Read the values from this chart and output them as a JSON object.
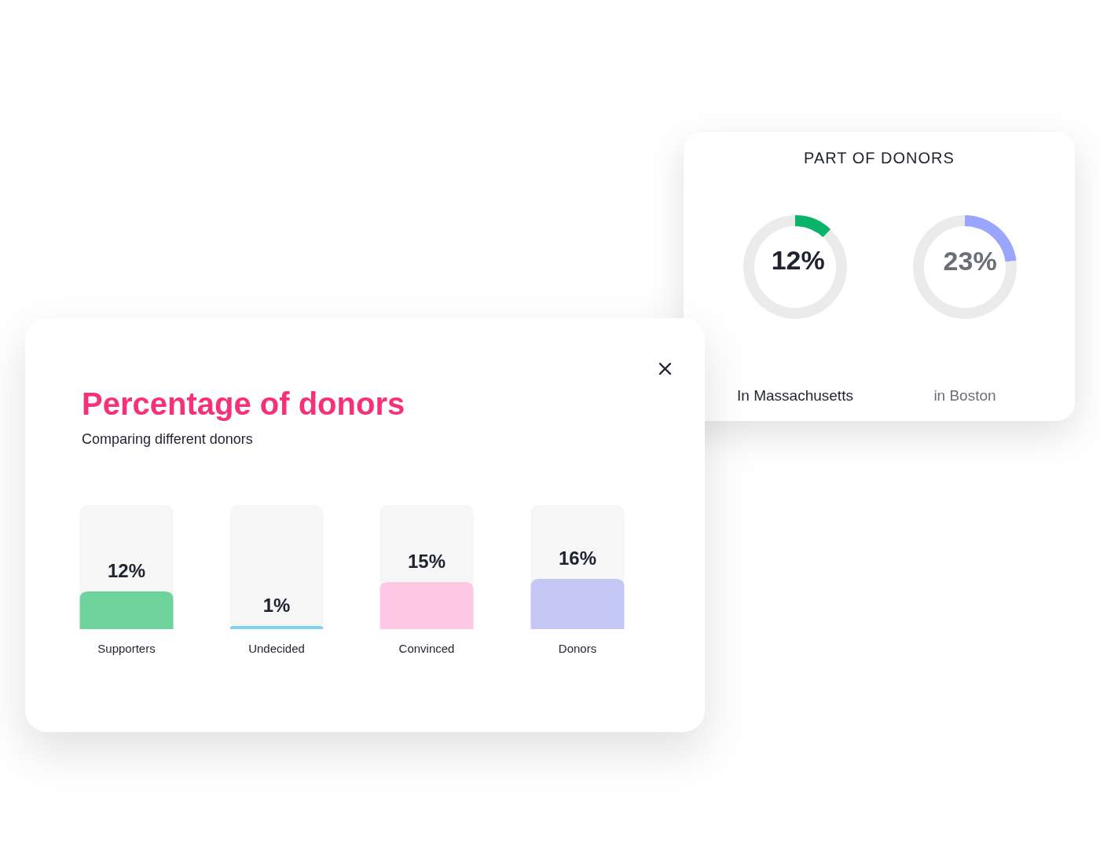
{
  "chart_data": [
    {
      "type": "bar",
      "title": "Percentage of donors",
      "subtitle": "Comparing different donors",
      "categories": [
        "Supporters",
        "Undecided",
        "Convinced",
        "Donors"
      ],
      "values": [
        12,
        1,
        15,
        16
      ],
      "colors": [
        "#6fd49b",
        "#7dd3f0",
        "#fdc7e6",
        "#c5c8f4"
      ],
      "value_labels": [
        "12%",
        "1%",
        "15%",
        "16%"
      ]
    },
    {
      "type": "donut",
      "title": "PART OF DONORS",
      "xlabel": "In Massachusetts",
      "categories": [
        null,
        null
      ],
      "values": [
        12,
        88
      ],
      "colors": [
        "#0ab26a",
        "#ebebeb"
      ],
      "value_labels": [
        "12%",
        null
      ]
    },
    {
      "type": "donut",
      "xlabel": "in Boston",
      "categories": [
        null,
        null
      ],
      "values": [
        23,
        77
      ],
      "colors": [
        "#9aa5fd",
        "#ebebeb"
      ],
      "value_labels": [
        "23%",
        null
      ]
    }
  ]
}
